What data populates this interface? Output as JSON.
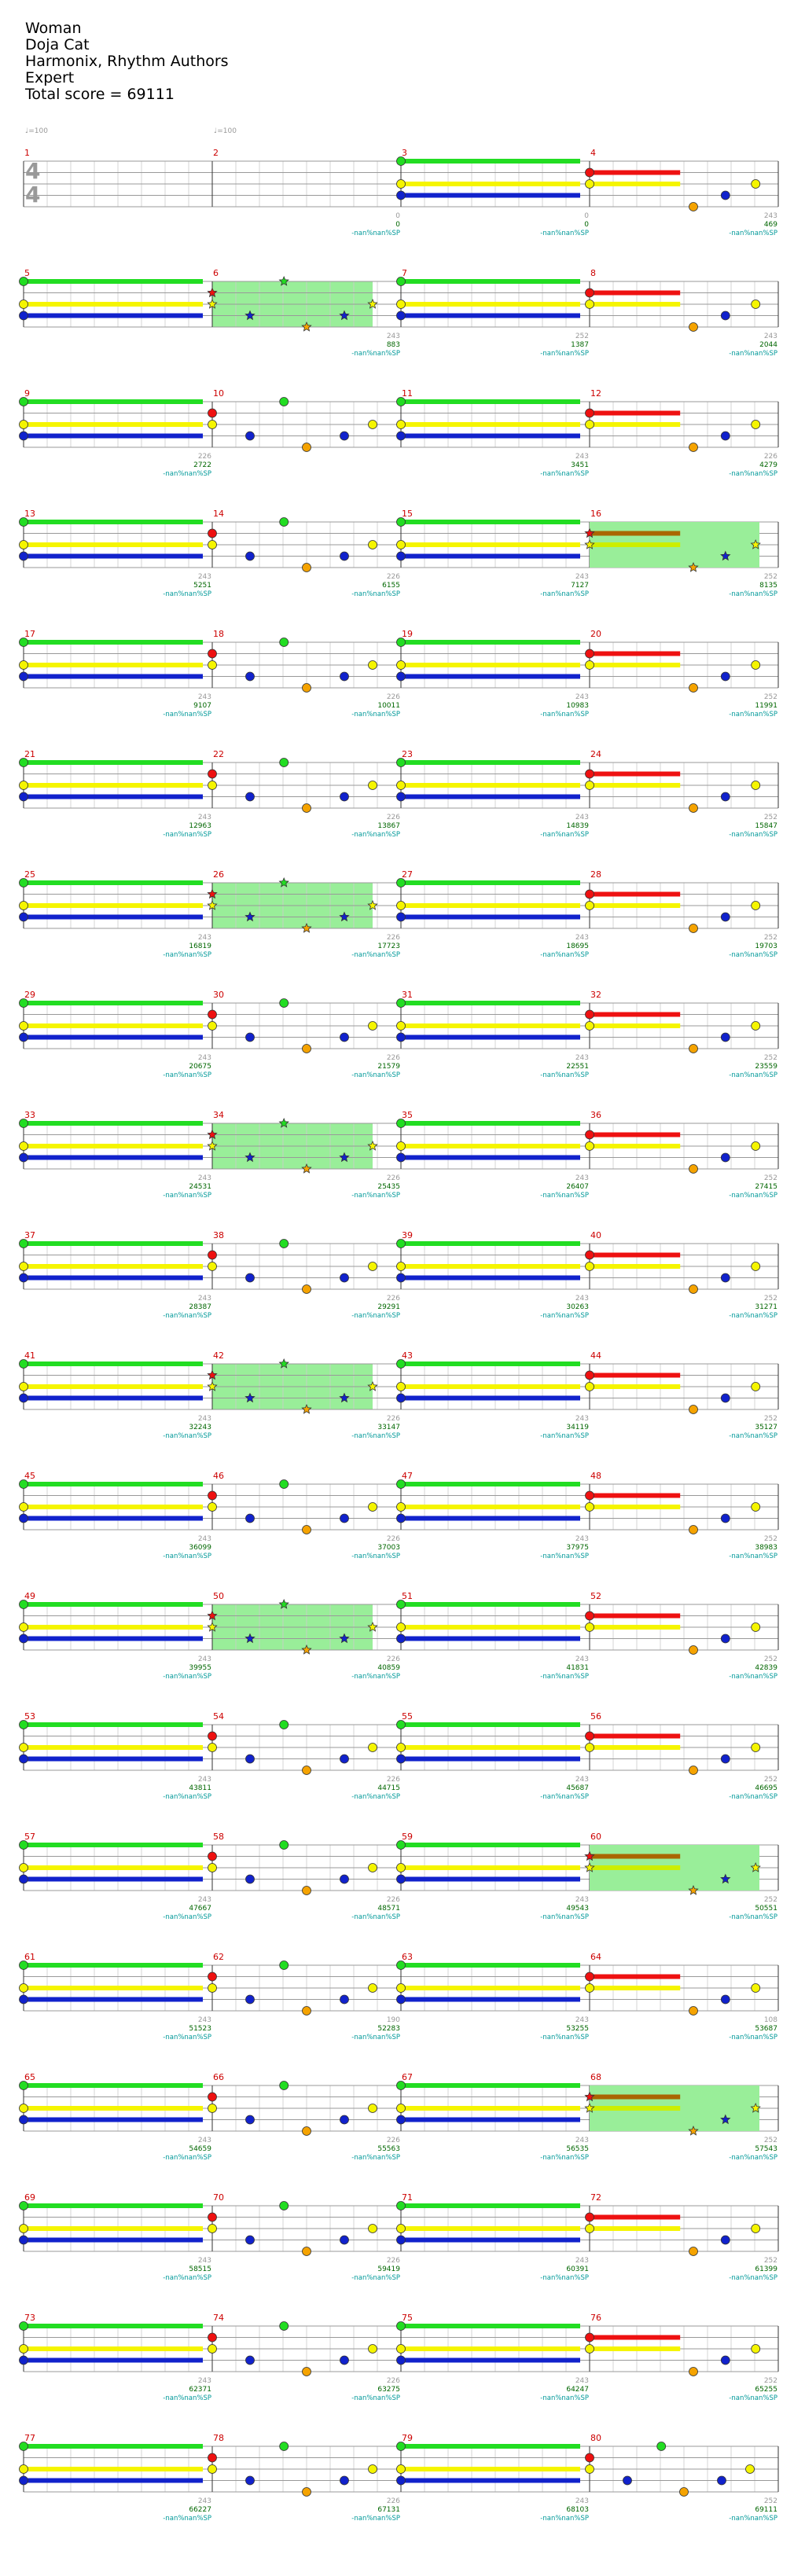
{
  "header": {
    "song_title": "Woman",
    "artist": "Doja Cat",
    "charter": "Harmonix, Rhythm Authors",
    "difficulty": "Expert",
    "total_score": "Total score = 69111"
  },
  "tempo_marks": [
    {
      "measure": 1,
      "label": "♩=100"
    },
    {
      "measure": 2,
      "label": "♩=100"
    }
  ],
  "time_signature": {
    "top": "4",
    "bottom": "4"
  },
  "nan_label": "-nan%nan%SP",
  "colors": {
    "green": "#22dd22",
    "red": "#ee1111",
    "yellow": "#f5f500",
    "blue": "#1122cc",
    "orange": "#f5a300",
    "sp_fill": "#99ee99",
    "measure_number": "#cc0000",
    "score": "#006600",
    "sp_text": "#009999",
    "gray": "#999999"
  },
  "measures": [
    {
      "n": 1,
      "pat": "empty",
      "count": "",
      "score": ""
    },
    {
      "n": 2,
      "pat": "empty",
      "count": "0",
      "score": "0"
    },
    {
      "n": 3,
      "pat": "intro",
      "count": "0",
      "score": "0"
    },
    {
      "n": 4,
      "pat": "B",
      "count": "243",
      "score": "469"
    },
    {
      "n": 5,
      "pat": "C",
      "count": "",
      "score": ""
    },
    {
      "n": 6,
      "pat": "A",
      "sp": true,
      "count": "243",
      "score": "883"
    },
    {
      "n": 7,
      "pat": "C",
      "count": "252",
      "score": "1387"
    },
    {
      "n": 8,
      "pat": "B",
      "count": "243",
      "score": "2044"
    },
    {
      "n": 9,
      "pat": "C",
      "count": "226",
      "score": "2722"
    },
    {
      "n": 10,
      "pat": "A",
      "count": "",
      "score": ""
    },
    {
      "n": 11,
      "pat": "C",
      "count": "243",
      "score": "3451"
    },
    {
      "n": 12,
      "pat": "B",
      "count": "226",
      "score": "4279"
    },
    {
      "n": 13,
      "pat": "C",
      "count": "243",
      "score": "5251"
    },
    {
      "n": 14,
      "pat": "A",
      "count": "226",
      "score": "6155"
    },
    {
      "n": 15,
      "pat": "C",
      "count": "243",
      "score": "7127"
    },
    {
      "n": 16,
      "pat": "B",
      "sp": true,
      "count": "252",
      "score": "8135"
    },
    {
      "n": 17,
      "pat": "C",
      "count": "243",
      "score": "9107"
    },
    {
      "n": 18,
      "pat": "A",
      "count": "226",
      "score": "10011"
    },
    {
      "n": 19,
      "pat": "C",
      "count": "243",
      "score": "10983"
    },
    {
      "n": 20,
      "pat": "B",
      "count": "252",
      "score": "11991"
    },
    {
      "n": 21,
      "pat": "C",
      "count": "243",
      "score": "12963"
    },
    {
      "n": 22,
      "pat": "A",
      "count": "226",
      "score": "13867"
    },
    {
      "n": 23,
      "pat": "C",
      "count": "243",
      "score": "14839"
    },
    {
      "n": 24,
      "pat": "B",
      "count": "252",
      "score": "15847"
    },
    {
      "n": 25,
      "pat": "C",
      "count": "243",
      "score": "16819"
    },
    {
      "n": 26,
      "pat": "A",
      "sp": true,
      "count": "226",
      "score": "17723"
    },
    {
      "n": 27,
      "pat": "C",
      "count": "243",
      "score": "18695"
    },
    {
      "n": 28,
      "pat": "B",
      "count": "252",
      "score": "19703"
    },
    {
      "n": 29,
      "pat": "C",
      "count": "243",
      "score": "20675"
    },
    {
      "n": 30,
      "pat": "A",
      "count": "226",
      "score": "21579"
    },
    {
      "n": 31,
      "pat": "C",
      "count": "243",
      "score": "22551"
    },
    {
      "n": 32,
      "pat": "B",
      "count": "252",
      "score": "23559"
    },
    {
      "n": 33,
      "pat": "C",
      "count": "243",
      "score": "24531"
    },
    {
      "n": 34,
      "pat": "A",
      "sp": true,
      "count": "226",
      "score": "25435"
    },
    {
      "n": 35,
      "pat": "C",
      "count": "243",
      "score": "26407"
    },
    {
      "n": 36,
      "pat": "B",
      "count": "252",
      "score": "27415"
    },
    {
      "n": 37,
      "pat": "C",
      "count": "243",
      "score": "28387"
    },
    {
      "n": 38,
      "pat": "A",
      "count": "226",
      "score": "29291"
    },
    {
      "n": 39,
      "pat": "C",
      "count": "243",
      "score": "30263"
    },
    {
      "n": 40,
      "pat": "B",
      "count": "252",
      "score": "31271"
    },
    {
      "n": 41,
      "pat": "C",
      "count": "243",
      "score": "32243"
    },
    {
      "n": 42,
      "pat": "A",
      "sp": true,
      "count": "226",
      "score": "33147"
    },
    {
      "n": 43,
      "pat": "C",
      "count": "243",
      "score": "34119"
    },
    {
      "n": 44,
      "pat": "B",
      "count": "252",
      "score": "35127"
    },
    {
      "n": 45,
      "pat": "C",
      "count": "243",
      "score": "36099"
    },
    {
      "n": 46,
      "pat": "A",
      "count": "226",
      "score": "37003"
    },
    {
      "n": 47,
      "pat": "C",
      "count": "243",
      "score": "37975"
    },
    {
      "n": 48,
      "pat": "B",
      "count": "252",
      "score": "38983"
    },
    {
      "n": 49,
      "pat": "C",
      "count": "243",
      "score": "39955"
    },
    {
      "n": 50,
      "pat": "A",
      "sp": true,
      "count": "226",
      "score": "40859"
    },
    {
      "n": 51,
      "pat": "C",
      "count": "243",
      "score": "41831"
    },
    {
      "n": 52,
      "pat": "B",
      "count": "252",
      "score": "42839"
    },
    {
      "n": 53,
      "pat": "C",
      "count": "243",
      "score": "43811"
    },
    {
      "n": 54,
      "pat": "A",
      "count": "226",
      "score": "44715"
    },
    {
      "n": 55,
      "pat": "C",
      "count": "243",
      "score": "45687"
    },
    {
      "n": 56,
      "pat": "B",
      "count": "252",
      "score": "46695"
    },
    {
      "n": 57,
      "pat": "C",
      "count": "243",
      "score": "47667"
    },
    {
      "n": 58,
      "pat": "A",
      "count": "226",
      "score": "48571"
    },
    {
      "n": 59,
      "pat": "C",
      "count": "243",
      "score": "49543"
    },
    {
      "n": 60,
      "pat": "B",
      "sp": true,
      "count": "252",
      "score": "50551"
    },
    {
      "n": 61,
      "pat": "C",
      "count": "243",
      "score": "51523"
    },
    {
      "n": 62,
      "pat": "A",
      "count": "190",
      "score": "52283"
    },
    {
      "n": 63,
      "pat": "C",
      "count": "243",
      "score": "53255"
    },
    {
      "n": 64,
      "pat": "B",
      "count": "108",
      "score": "53687"
    },
    {
      "n": 65,
      "pat": "C",
      "count": "243",
      "score": "54659"
    },
    {
      "n": 66,
      "pat": "A",
      "count": "226",
      "score": "55563"
    },
    {
      "n": 67,
      "pat": "C",
      "count": "243",
      "score": "56535"
    },
    {
      "n": 68,
      "pat": "B",
      "sp": true,
      "count": "252",
      "score": "57543"
    },
    {
      "n": 69,
      "pat": "C",
      "count": "243",
      "score": "58515"
    },
    {
      "n": 70,
      "pat": "A",
      "count": "226",
      "score": "59419"
    },
    {
      "n": 71,
      "pat": "C",
      "count": "243",
      "score": "60391"
    },
    {
      "n": 72,
      "pat": "B",
      "count": "252",
      "score": "61399"
    },
    {
      "n": 73,
      "pat": "C",
      "count": "243",
      "score": "62371"
    },
    {
      "n": 74,
      "pat": "A",
      "count": "226",
      "score": "63275"
    },
    {
      "n": 75,
      "pat": "C",
      "count": "243",
      "score": "64247"
    },
    {
      "n": 76,
      "pat": "B",
      "count": "252",
      "score": "65255"
    },
    {
      "n": 77,
      "pat": "C",
      "count": "243",
      "score": "66227"
    },
    {
      "n": 78,
      "pat": "A",
      "count": "226",
      "score": "67131"
    },
    {
      "n": 79,
      "pat": "end1",
      "count": "243",
      "score": "68103"
    },
    {
      "n": 80,
      "pat": "end2",
      "count": "252",
      "score": "69111"
    }
  ]
}
